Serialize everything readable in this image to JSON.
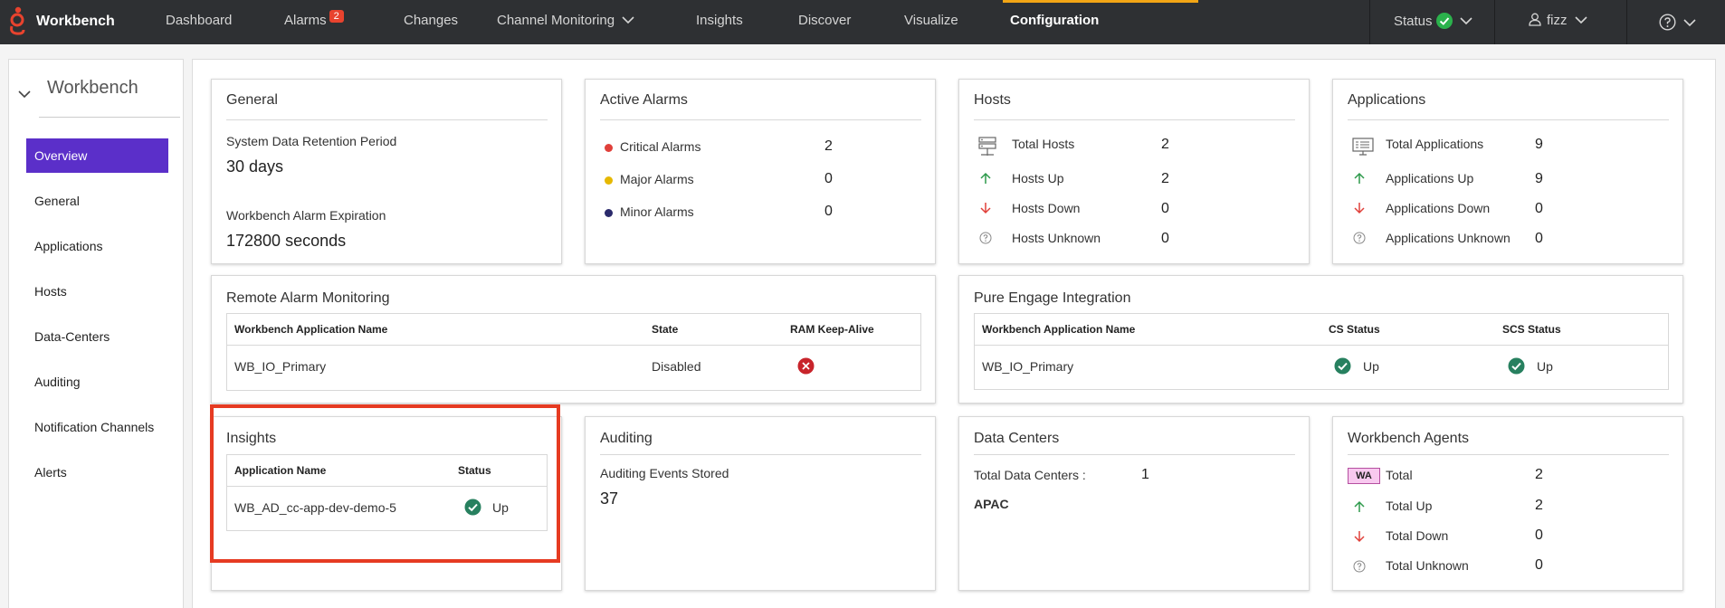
{
  "nav": {
    "brand": "Workbench",
    "items": [
      {
        "label": "Dashboard"
      },
      {
        "label": "Alarms",
        "badge": "2"
      },
      {
        "label": "Changes"
      },
      {
        "label": "Channel Monitoring"
      },
      {
        "label": "Insights"
      },
      {
        "label": "Discover"
      },
      {
        "label": "Visualize"
      },
      {
        "label": "Configuration",
        "active": true
      }
    ],
    "status_label": "Status",
    "user": "fizz",
    "colors": {
      "background": "#2e3033",
      "active_underline": "#f2a515",
      "badge": "#e8432e",
      "status_ok": "#2bb24c"
    }
  },
  "sidebar": {
    "title": "Workbench",
    "items": [
      {
        "label": "Overview",
        "active": true
      },
      {
        "label": "General"
      },
      {
        "label": "Applications"
      },
      {
        "label": "Hosts"
      },
      {
        "label": "Data-Centers"
      },
      {
        "label": "Auditing"
      },
      {
        "label": "Notification Channels"
      },
      {
        "label": "Alerts"
      }
    ],
    "active_color": "#5b2fc9"
  },
  "cards": {
    "general": {
      "title": "General",
      "retention_label": "System Data Retention Period",
      "retention_value": "30 days",
      "expiration_label": "Workbench Alarm Expiration",
      "expiration_value": "172800 seconds"
    },
    "active_alarms": {
      "title": "Active Alarms",
      "rows": [
        {
          "label": "Critical Alarms",
          "value": "2",
          "color": "#e0403a"
        },
        {
          "label": "Major Alarms",
          "value": "0",
          "color": "#e6b800"
        },
        {
          "label": "Minor Alarms",
          "value": "0",
          "color": "#2b2a6b"
        }
      ]
    },
    "hosts": {
      "title": "Hosts",
      "rows": [
        {
          "label": "Total Hosts",
          "value": "2",
          "icon": "server-icon"
        },
        {
          "label": "Hosts Up",
          "value": "2",
          "icon": "arrow-up-icon"
        },
        {
          "label": "Hosts Down",
          "value": "0",
          "icon": "arrow-down-icon"
        },
        {
          "label": "Hosts Unknown",
          "value": "0",
          "icon": "question-icon"
        }
      ]
    },
    "applications": {
      "title": "Applications",
      "rows": [
        {
          "label": "Total Applications",
          "value": "9",
          "icon": "application-icon"
        },
        {
          "label": "Applications Up",
          "value": "9",
          "icon": "arrow-up-icon"
        },
        {
          "label": "Applications Down",
          "value": "0",
          "icon": "arrow-down-icon"
        },
        {
          "label": "Applications Unknown",
          "value": "0",
          "icon": "question-icon"
        }
      ]
    },
    "remote_alarm": {
      "title": "Remote Alarm Monitoring",
      "headers": [
        "Workbench Application Name",
        "State",
        "RAM Keep-Alive"
      ],
      "rows": [
        {
          "name": "WB_IO_Primary",
          "state": "Disabled",
          "keepalive": "error"
        }
      ]
    },
    "pure_engage": {
      "title": "Pure Engage Integration",
      "headers": [
        "Workbench Application Name",
        "CS Status",
        "SCS Status"
      ],
      "rows": [
        {
          "name": "WB_IO_Primary",
          "cs": "Up",
          "scs": "Up"
        }
      ]
    },
    "insights": {
      "title": "Insights",
      "headers": [
        "Application Name",
        "Status"
      ],
      "rows": [
        {
          "name": "WB_AD_cc-app-dev-demo-5",
          "status": "Up"
        }
      ]
    },
    "auditing": {
      "title": "Auditing",
      "events_label": "Auditing Events Stored",
      "events_value": "37"
    },
    "data_centers": {
      "title": "Data Centers",
      "total_label": "Total Data Centers :",
      "total_value": "1",
      "names": [
        "APAC"
      ]
    },
    "agents": {
      "title": "Workbench Agents",
      "badge": "WA",
      "rows": [
        {
          "label": "Total",
          "value": "2"
        },
        {
          "label": "Total Up",
          "value": "2"
        },
        {
          "label": "Total Down",
          "value": "0"
        },
        {
          "label": "Total Unknown",
          "value": "0"
        }
      ]
    }
  }
}
